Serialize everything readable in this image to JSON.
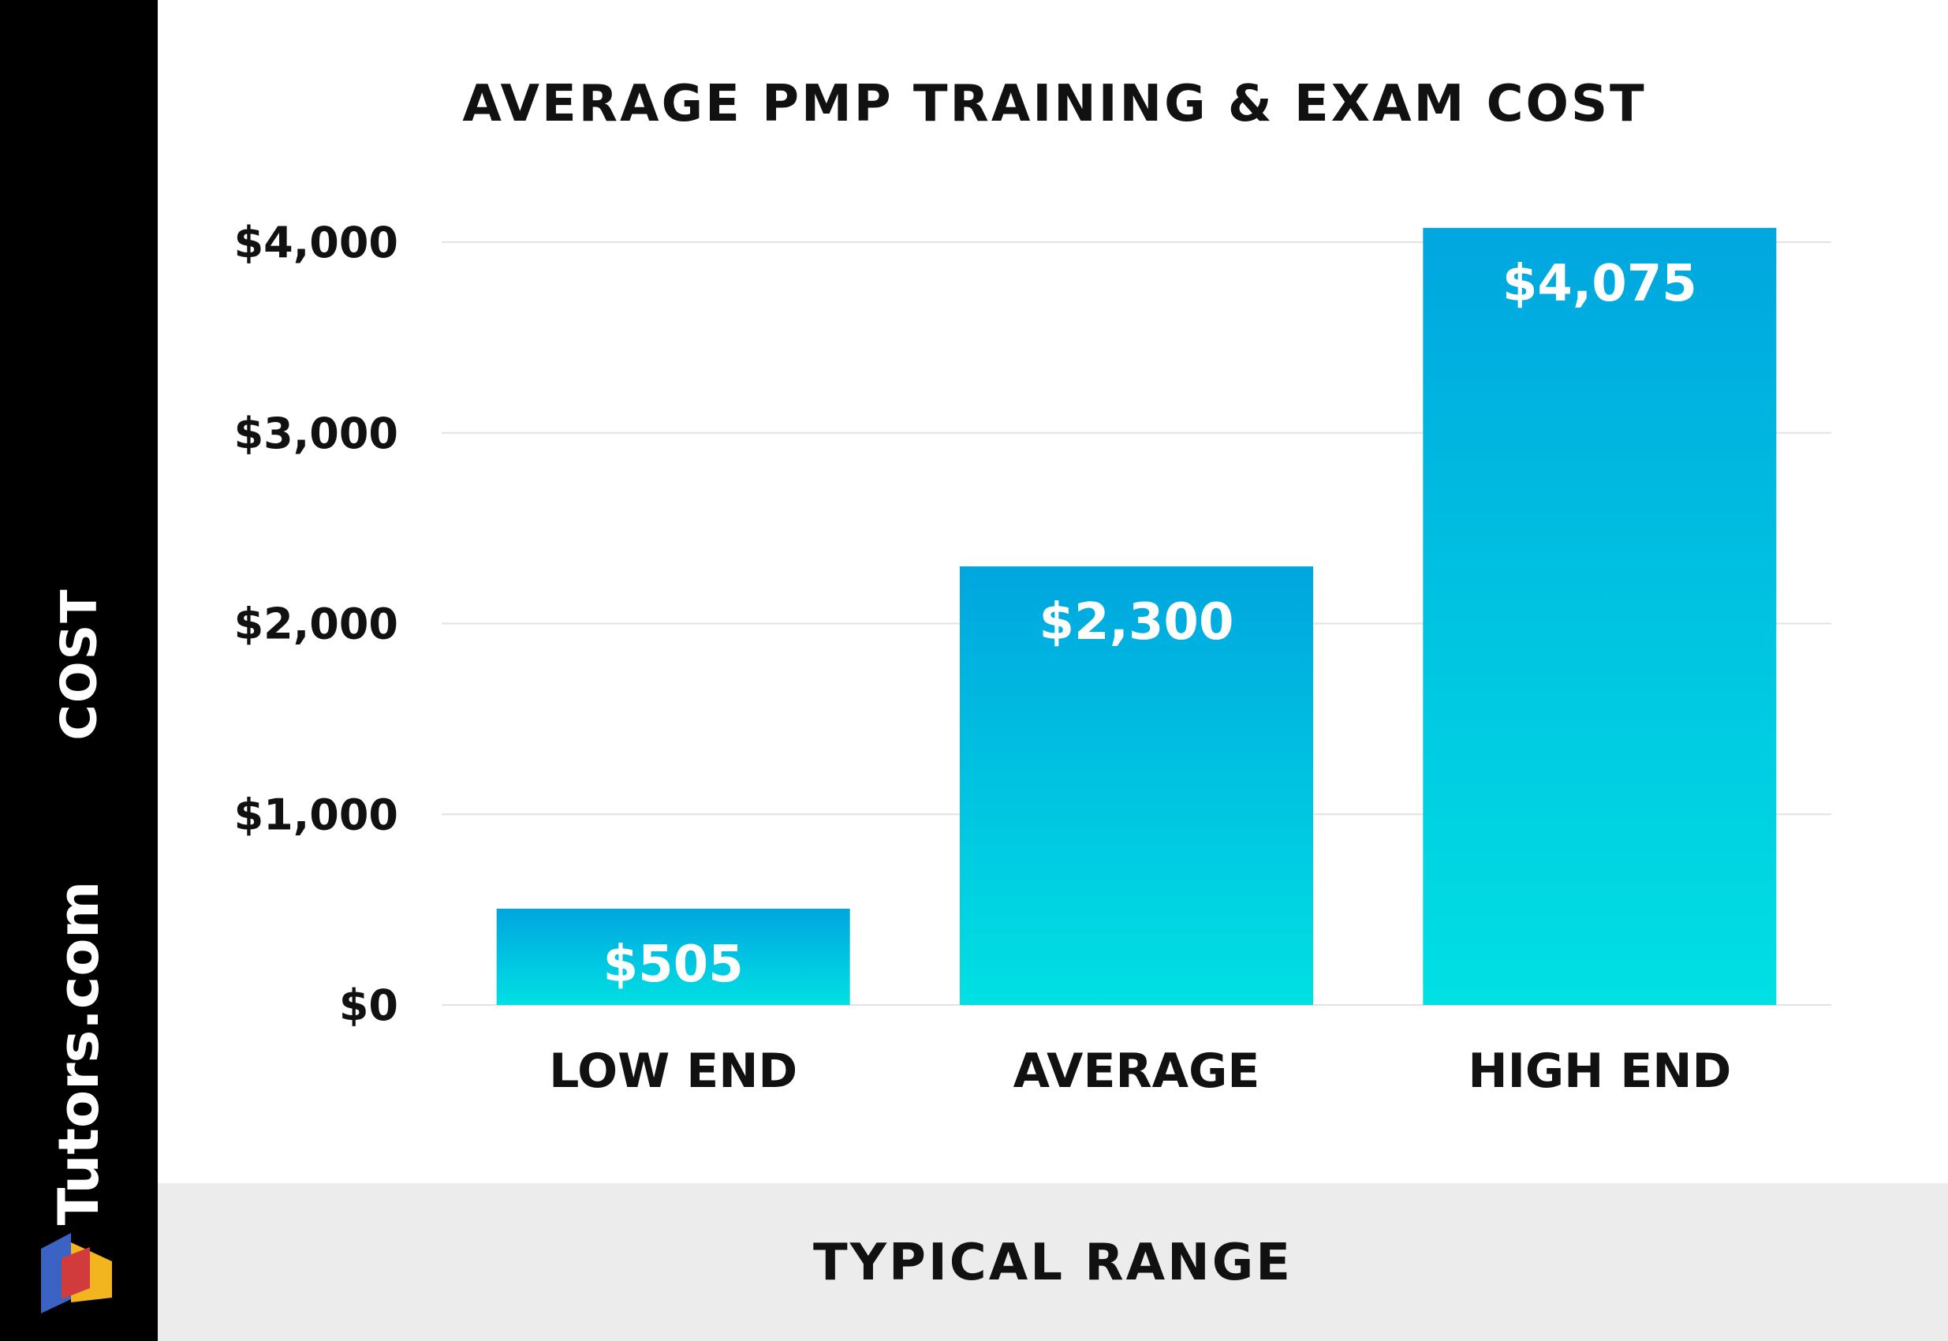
{
  "brand": {
    "name": "Tutors.com",
    "colors": [
      "#3b63c4",
      "#d23b3b",
      "#f2b51f"
    ]
  },
  "chart_data": {
    "type": "bar",
    "title": "AVERAGE PMP TRAINING & EXAM COST",
    "xlabel": "TYPICAL RANGE",
    "ylabel": "COST",
    "categories": [
      "LOW END",
      "AVERAGE",
      "HIGH END"
    ],
    "values": [
      505,
      2300,
      4075
    ],
    "data_labels": [
      "$505",
      "$2,300",
      "$4,075"
    ],
    "ylim": [
      0,
      4000
    ],
    "yticks": [
      0,
      1000,
      2000,
      3000,
      4000
    ],
    "ytick_labels": [
      "$0",
      "$1,000",
      "$2,000",
      "$3,000",
      "$4,000"
    ],
    "grid": true,
    "legend": "none",
    "bar_color_top": "#00a6df",
    "bar_color_bottom": "#00e0e3"
  }
}
